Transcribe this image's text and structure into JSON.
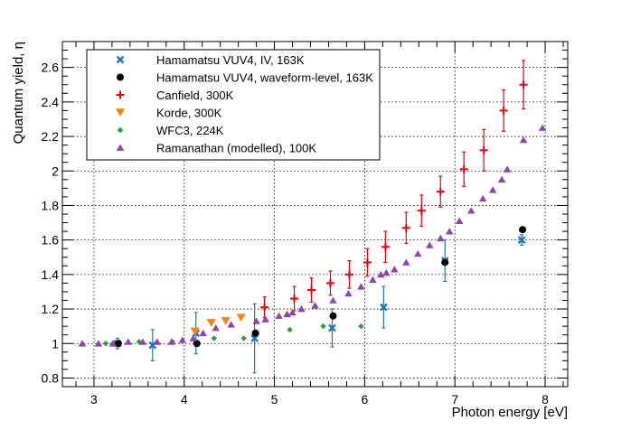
{
  "chart_data": {
    "type": "scatter",
    "xlabel": "Photon energy [eV]",
    "ylabel": "Quantum yield, η",
    "xlim": [
      2.65,
      8.25
    ],
    "ylim": [
      0.75,
      2.75
    ],
    "x_ticks": [
      3,
      4,
      5,
      6,
      7,
      8
    ],
    "y_ticks": [
      0.8,
      1,
      1.2,
      1.4,
      1.6,
      1.8,
      2,
      2.2,
      2.4,
      2.6
    ],
    "grid": true,
    "legend_position": "top-left",
    "series": [
      {
        "name": "Hamamatsu VUV4, IV, 163K",
        "marker": "x",
        "color": "#1f77b4",
        "points": [
          {
            "x": 3.26,
            "y": 1.0,
            "err": 0.03
          },
          {
            "x": 3.65,
            "y": 0.99,
            "err": 0.09
          },
          {
            "x": 4.13,
            "y": 1.06,
            "err": 0.12
          },
          {
            "x": 4.78,
            "y": 1.03,
            "err": 0.2
          },
          {
            "x": 5.64,
            "y": 1.09,
            "err": 0.11
          },
          {
            "x": 6.21,
            "y": 1.21,
            "err": 0.12
          },
          {
            "x": 6.89,
            "y": 1.48,
            "err": 0.12
          },
          {
            "x": 7.74,
            "y": 1.6,
            "err": 0.03
          }
        ]
      },
      {
        "name": "Hamamatsu VUV4, waveform-level, 163K",
        "marker": "circle",
        "color": "#000000",
        "points": [
          {
            "x": 3.27,
            "y": 1.0
          },
          {
            "x": 4.14,
            "y": 1.0
          },
          {
            "x": 4.79,
            "y": 1.06
          },
          {
            "x": 5.65,
            "y": 1.16
          },
          {
            "x": 6.89,
            "y": 1.47
          },
          {
            "x": 7.75,
            "y": 1.66
          }
        ]
      },
      {
        "name": "Canfield, 300K",
        "marker": "plus",
        "color": "#e8000b",
        "points": [
          {
            "x": 4.89,
            "y": 1.21,
            "err": 0.06
          },
          {
            "x": 5.22,
            "y": 1.26,
            "err": 0.07
          },
          {
            "x": 5.41,
            "y": 1.31,
            "err": 0.07
          },
          {
            "x": 5.62,
            "y": 1.35,
            "err": 0.07
          },
          {
            "x": 5.83,
            "y": 1.4,
            "err": 0.08
          },
          {
            "x": 6.03,
            "y": 1.47,
            "err": 0.08
          },
          {
            "x": 6.23,
            "y": 1.56,
            "err": 0.09
          },
          {
            "x": 6.46,
            "y": 1.67,
            "err": 0.09
          },
          {
            "x": 6.63,
            "y": 1.77,
            "err": 0.09
          },
          {
            "x": 6.84,
            "y": 1.88,
            "err": 0.09
          },
          {
            "x": 7.1,
            "y": 2.01,
            "err": 0.1
          },
          {
            "x": 7.32,
            "y": 2.12,
            "err": 0.12
          },
          {
            "x": 7.54,
            "y": 2.35,
            "err": 0.12
          },
          {
            "x": 7.76,
            "y": 2.5,
            "err": 0.14
          }
        ]
      },
      {
        "name": "Korde, 300K",
        "marker": "triangle-down",
        "color": "#ff7f0e",
        "points": [
          {
            "x": 4.12,
            "y": 1.07
          },
          {
            "x": 4.3,
            "y": 1.12
          },
          {
            "x": 4.46,
            "y": 1.13
          },
          {
            "x": 4.63,
            "y": 1.15
          }
        ]
      },
      {
        "name": "WFC3, 224K",
        "marker": "diamond",
        "color": "#2ca02c",
        "points": [
          {
            "x": 3.13,
            "y": 1.0
          },
          {
            "x": 3.5,
            "y": 1.01
          },
          {
            "x": 3.87,
            "y": 1.01
          },
          {
            "x": 4.33,
            "y": 1.03
          },
          {
            "x": 4.66,
            "y": 1.03
          },
          {
            "x": 5.17,
            "y": 1.08
          },
          {
            "x": 5.54,
            "y": 1.1
          },
          {
            "x": 5.96,
            "y": 1.1
          }
        ]
      },
      {
        "name": "Ramanathan (modelled), 100K",
        "marker": "triangle-up",
        "color": "#8e44ad",
        "points": [
          {
            "x": 2.87,
            "y": 1.0
          },
          {
            "x": 3.05,
            "y": 1.0
          },
          {
            "x": 3.21,
            "y": 1.0
          },
          {
            "x": 3.38,
            "y": 1.01
          },
          {
            "x": 3.54,
            "y": 1.01
          },
          {
            "x": 3.7,
            "y": 1.01
          },
          {
            "x": 3.86,
            "y": 1.01
          },
          {
            "x": 3.98,
            "y": 1.02
          },
          {
            "x": 4.1,
            "y": 1.03
          },
          {
            "x": 4.21,
            "y": 1.06
          },
          {
            "x": 4.35,
            "y": 1.09
          },
          {
            "x": 4.52,
            "y": 1.11
          },
          {
            "x": 4.8,
            "y": 1.13
          },
          {
            "x": 4.9,
            "y": 1.14
          },
          {
            "x": 5.05,
            "y": 1.16
          },
          {
            "x": 5.14,
            "y": 1.17
          },
          {
            "x": 5.2,
            "y": 1.18
          },
          {
            "x": 5.3,
            "y": 1.2
          },
          {
            "x": 5.45,
            "y": 1.22
          },
          {
            "x": 5.65,
            "y": 1.25
          },
          {
            "x": 5.82,
            "y": 1.29
          },
          {
            "x": 5.96,
            "y": 1.33
          },
          {
            "x": 6.09,
            "y": 1.37
          },
          {
            "x": 6.18,
            "y": 1.4
          },
          {
            "x": 6.24,
            "y": 1.41
          },
          {
            "x": 6.33,
            "y": 1.43
          },
          {
            "x": 6.46,
            "y": 1.47
          },
          {
            "x": 6.59,
            "y": 1.52
          },
          {
            "x": 6.72,
            "y": 1.57
          },
          {
            "x": 6.84,
            "y": 1.61
          },
          {
            "x": 6.94,
            "y": 1.65
          },
          {
            "x": 7.05,
            "y": 1.71
          },
          {
            "x": 7.18,
            "y": 1.77
          },
          {
            "x": 7.31,
            "y": 1.84
          },
          {
            "x": 7.42,
            "y": 1.89
          },
          {
            "x": 7.52,
            "y": 1.95
          },
          {
            "x": 7.58,
            "y": 2.01
          },
          {
            "x": 7.76,
            "y": 2.18
          },
          {
            "x": 7.97,
            "y": 2.25
          }
        ]
      }
    ]
  }
}
